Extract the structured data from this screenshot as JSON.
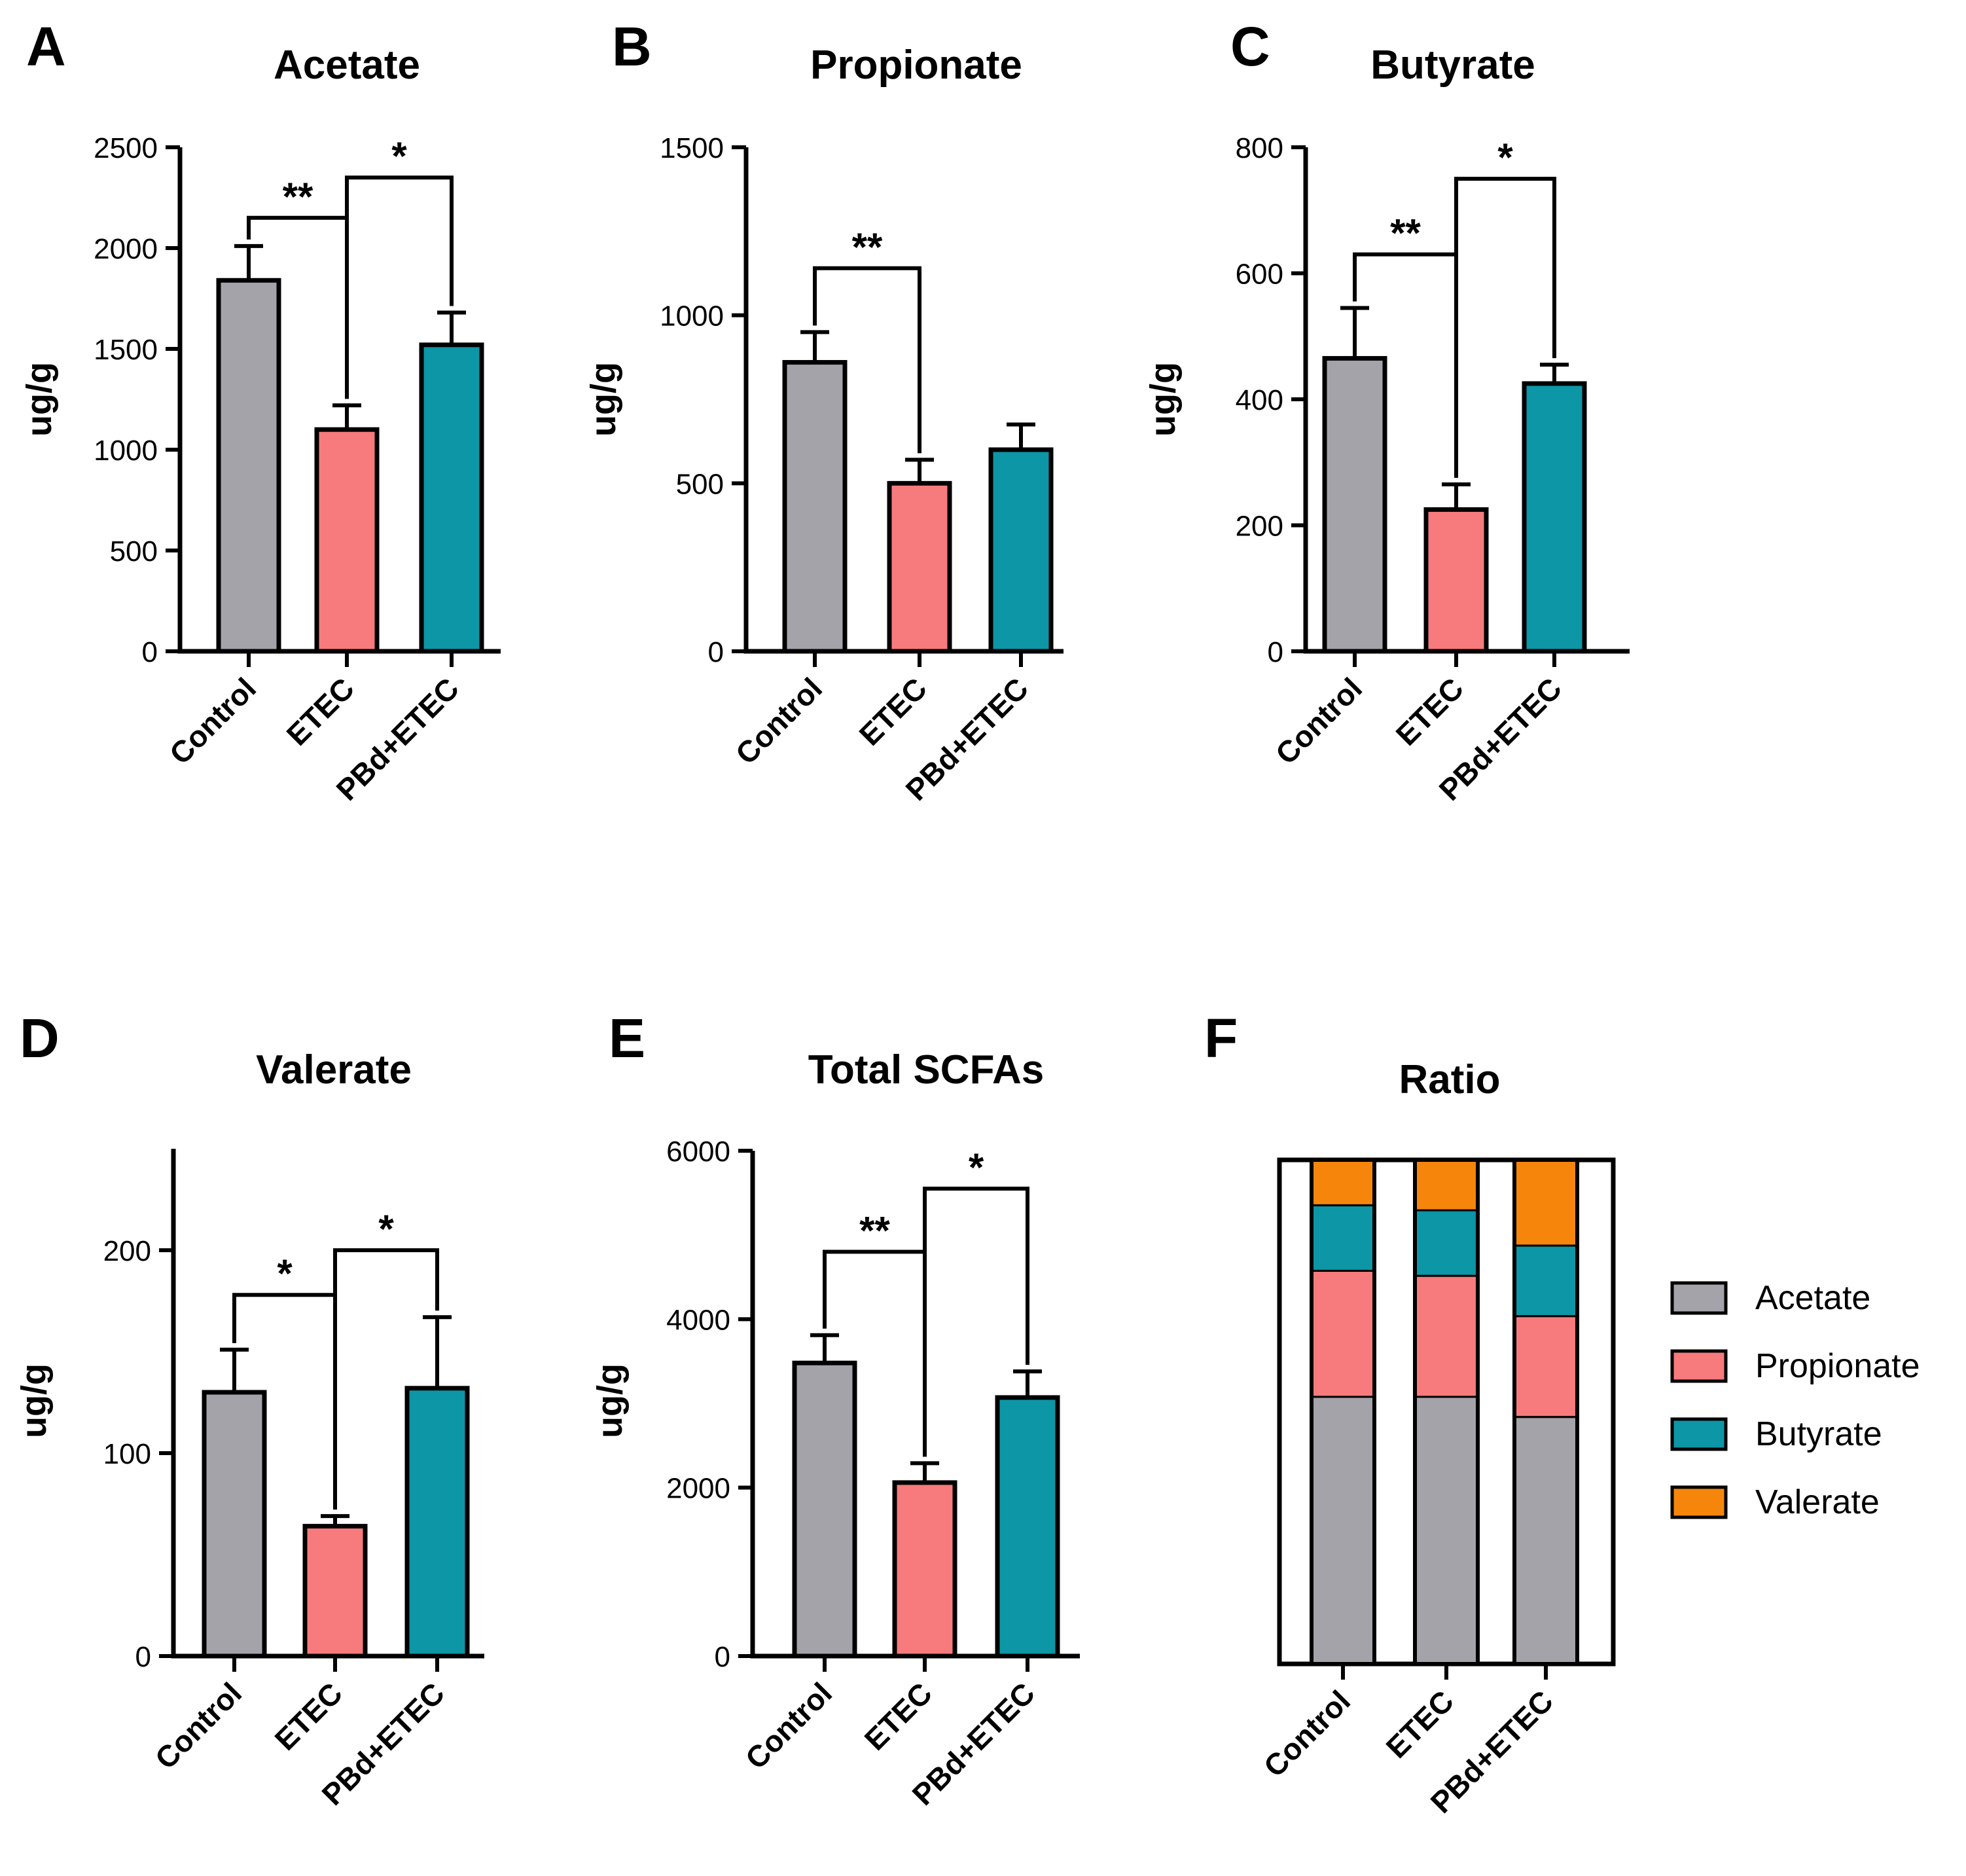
{
  "chart_data": [
    {
      "panel": "A",
      "type": "bar",
      "title": "Acetate",
      "categories": [
        "Control",
        "ETEC",
        "PBd+ETEC"
      ],
      "values": [
        1840,
        1100,
        1520
      ],
      "errors": [
        170,
        120,
        160
      ],
      "ylabel": "ug/g",
      "ylim": [
        0,
        2500
      ],
      "yticks": [
        "0",
        "500",
        "1000",
        "1500",
        "2000",
        "2500"
      ],
      "significance": [
        {
          "from": 0,
          "to": 1,
          "label": "**",
          "level": 2150
        },
        {
          "from": 1,
          "to": 2,
          "label": "*",
          "level": 2350
        }
      ]
    },
    {
      "panel": "B",
      "type": "bar",
      "title": "Propionate",
      "categories": [
        "Control",
        "ETEC",
        "PBd+ETEC"
      ],
      "values": [
        860,
        500,
        600
      ],
      "errors": [
        90,
        70,
        75
      ],
      "ylabel": "ug/g",
      "ylim": [
        0,
        1500
      ],
      "yticks": [
        "0",
        "500",
        "1000",
        "1500"
      ],
      "significance": [
        {
          "from": 0,
          "to": 1,
          "label": "**",
          "level": 1140
        }
      ]
    },
    {
      "panel": "C",
      "type": "bar",
      "title": "Butyrate",
      "categories": [
        "Control",
        "ETEC",
        "PBd+ETEC"
      ],
      "values": [
        465,
        225,
        425
      ],
      "errors": [
        80,
        40,
        30
      ],
      "ylabel": "ug/g",
      "ylim": [
        0,
        800
      ],
      "yticks": [
        "0",
        "200",
        "400",
        "600",
        "800"
      ],
      "significance": [
        {
          "from": 0,
          "to": 1,
          "label": "**",
          "level": 630
        },
        {
          "from": 1,
          "to": 2,
          "label": "*",
          "level": 750
        }
      ]
    },
    {
      "panel": "D",
      "type": "bar",
      "title": "Valerate",
      "categories": [
        "Control",
        "ETEC",
        "PBd+ETEC"
      ],
      "values": [
        130,
        64,
        132
      ],
      "errors": [
        21,
        5,
        35
      ],
      "ylabel": "ug/g",
      "ylim": [
        0,
        250
      ],
      "yticks": [
        "0",
        "100",
        "200"
      ],
      "significance": [
        {
          "from": 0,
          "to": 1,
          "label": "*",
          "level": 178
        },
        {
          "from": 1,
          "to": 2,
          "label": "*",
          "level": 200
        }
      ]
    },
    {
      "panel": "E",
      "type": "bar",
      "title": "Total SCFAs",
      "categories": [
        "Control",
        "ETEC",
        "PBd+ETEC"
      ],
      "values": [
        3480,
        2060,
        3070
      ],
      "errors": [
        330,
        230,
        310
      ],
      "ylabel": "ug/g",
      "ylim": [
        0,
        6000
      ],
      "yticks": [
        "0",
        "2000",
        "4000",
        "6000"
      ],
      "significance": [
        {
          "from": 0,
          "to": 1,
          "label": "**",
          "level": 4800
        },
        {
          "from": 1,
          "to": 2,
          "label": "*",
          "level": 5550
        }
      ]
    },
    {
      "panel": "F",
      "type": "stacked-bar",
      "title": "Ratio",
      "categories": [
        "Control",
        "ETEC",
        "PBd+ETEC"
      ],
      "series": [
        {
          "name": "Acetate",
          "values": [
            0.53,
            0.53,
            0.49
          ]
        },
        {
          "name": "Propionate",
          "values": [
            0.25,
            0.24,
            0.2
          ]
        },
        {
          "name": "Butyrate",
          "values": [
            0.13,
            0.13,
            0.14
          ]
        },
        {
          "name": "Valerate",
          "values": [
            0.09,
            0.1,
            0.17
          ]
        }
      ],
      "legend_position": "right"
    }
  ],
  "colors": {
    "Control": "#a5a3aa",
    "ETEC": "#f77b7c",
    "PBd+ETEC": "#0c96a6",
    "Acetate": "#a5a3aa",
    "Propionate": "#f77b7c",
    "Butyrate": "#0c96a6",
    "Valerate": "#f6860b"
  }
}
